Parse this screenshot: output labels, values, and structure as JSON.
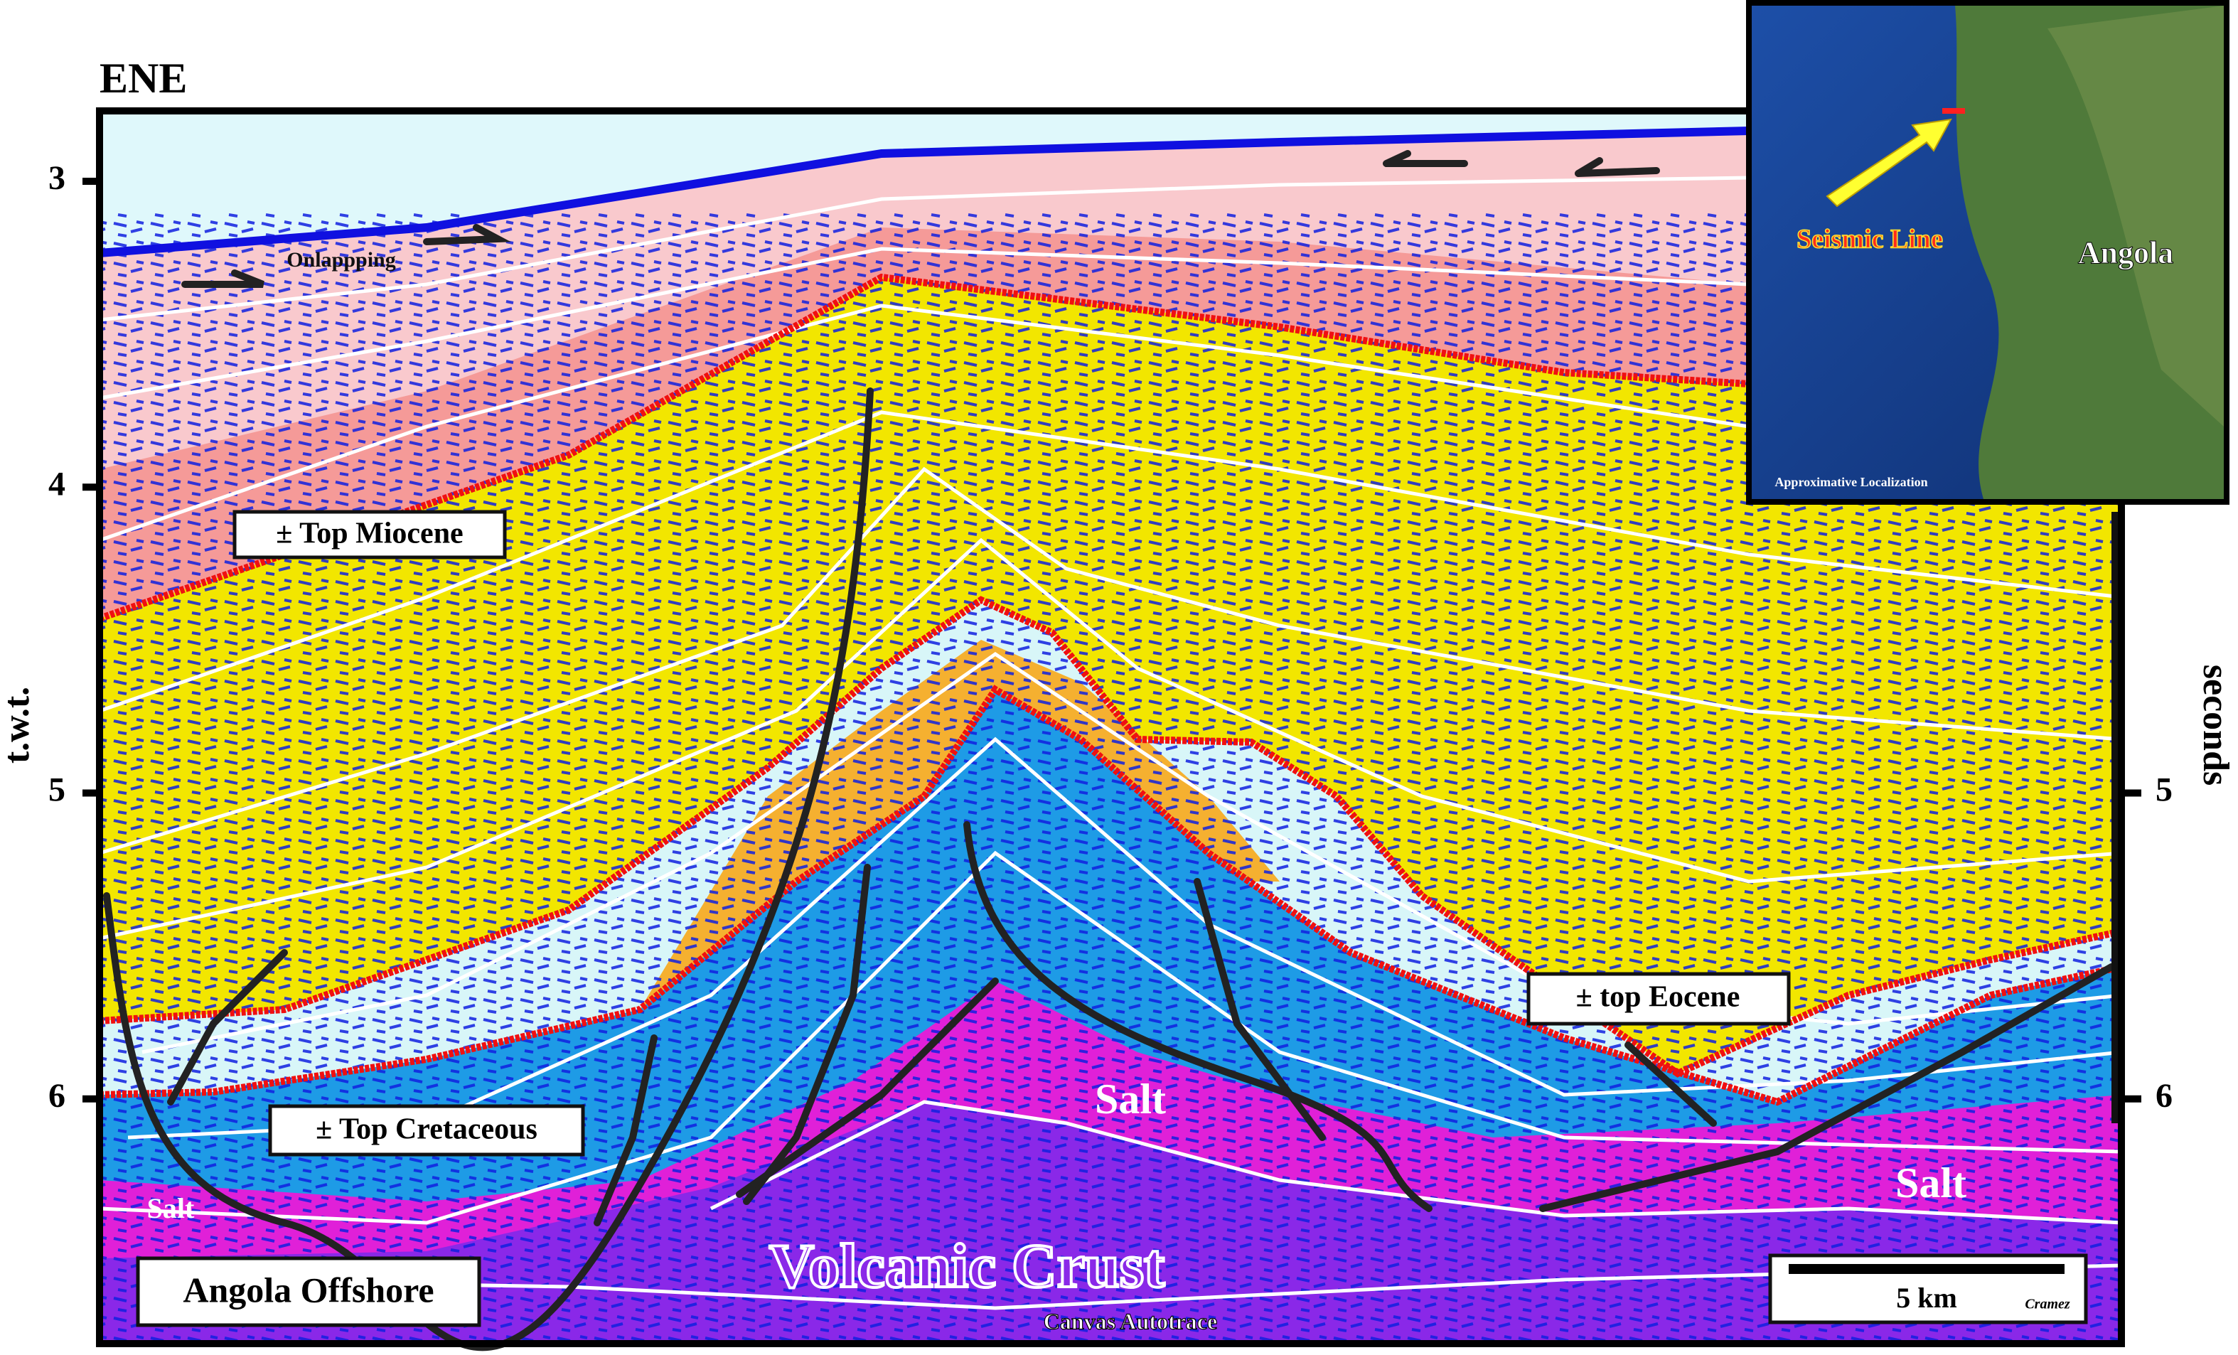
{
  "header": {
    "title": "ENE"
  },
  "axis": {
    "left_label": "t.w.t.",
    "right_label": "seconds",
    "ylim": [
      2.77,
      6.8
    ],
    "left_ticks": [
      3,
      4,
      5,
      6
    ],
    "right_ticks": [
      5,
      6
    ]
  },
  "labels": {
    "top_miocene": "± Top Miocene",
    "top_cretaceous": "± Top Cretaceous",
    "top_eocene": "± top Eocene",
    "onlapping": "Onlappping",
    "salt_center": "Salt",
    "salt_right": "Salt",
    "salt_left": "Salt",
    "volcanic_crust": "Volcanic Crust",
    "canvas_autotrace": "Canvas Autotrace",
    "angola_offshore": "Angola Offshore",
    "scale": "5 km",
    "author": "Cramez"
  },
  "inset": {
    "seismic_line": "Seismic Line",
    "country": "Angola",
    "localization": "Approximative Localization"
  }
}
